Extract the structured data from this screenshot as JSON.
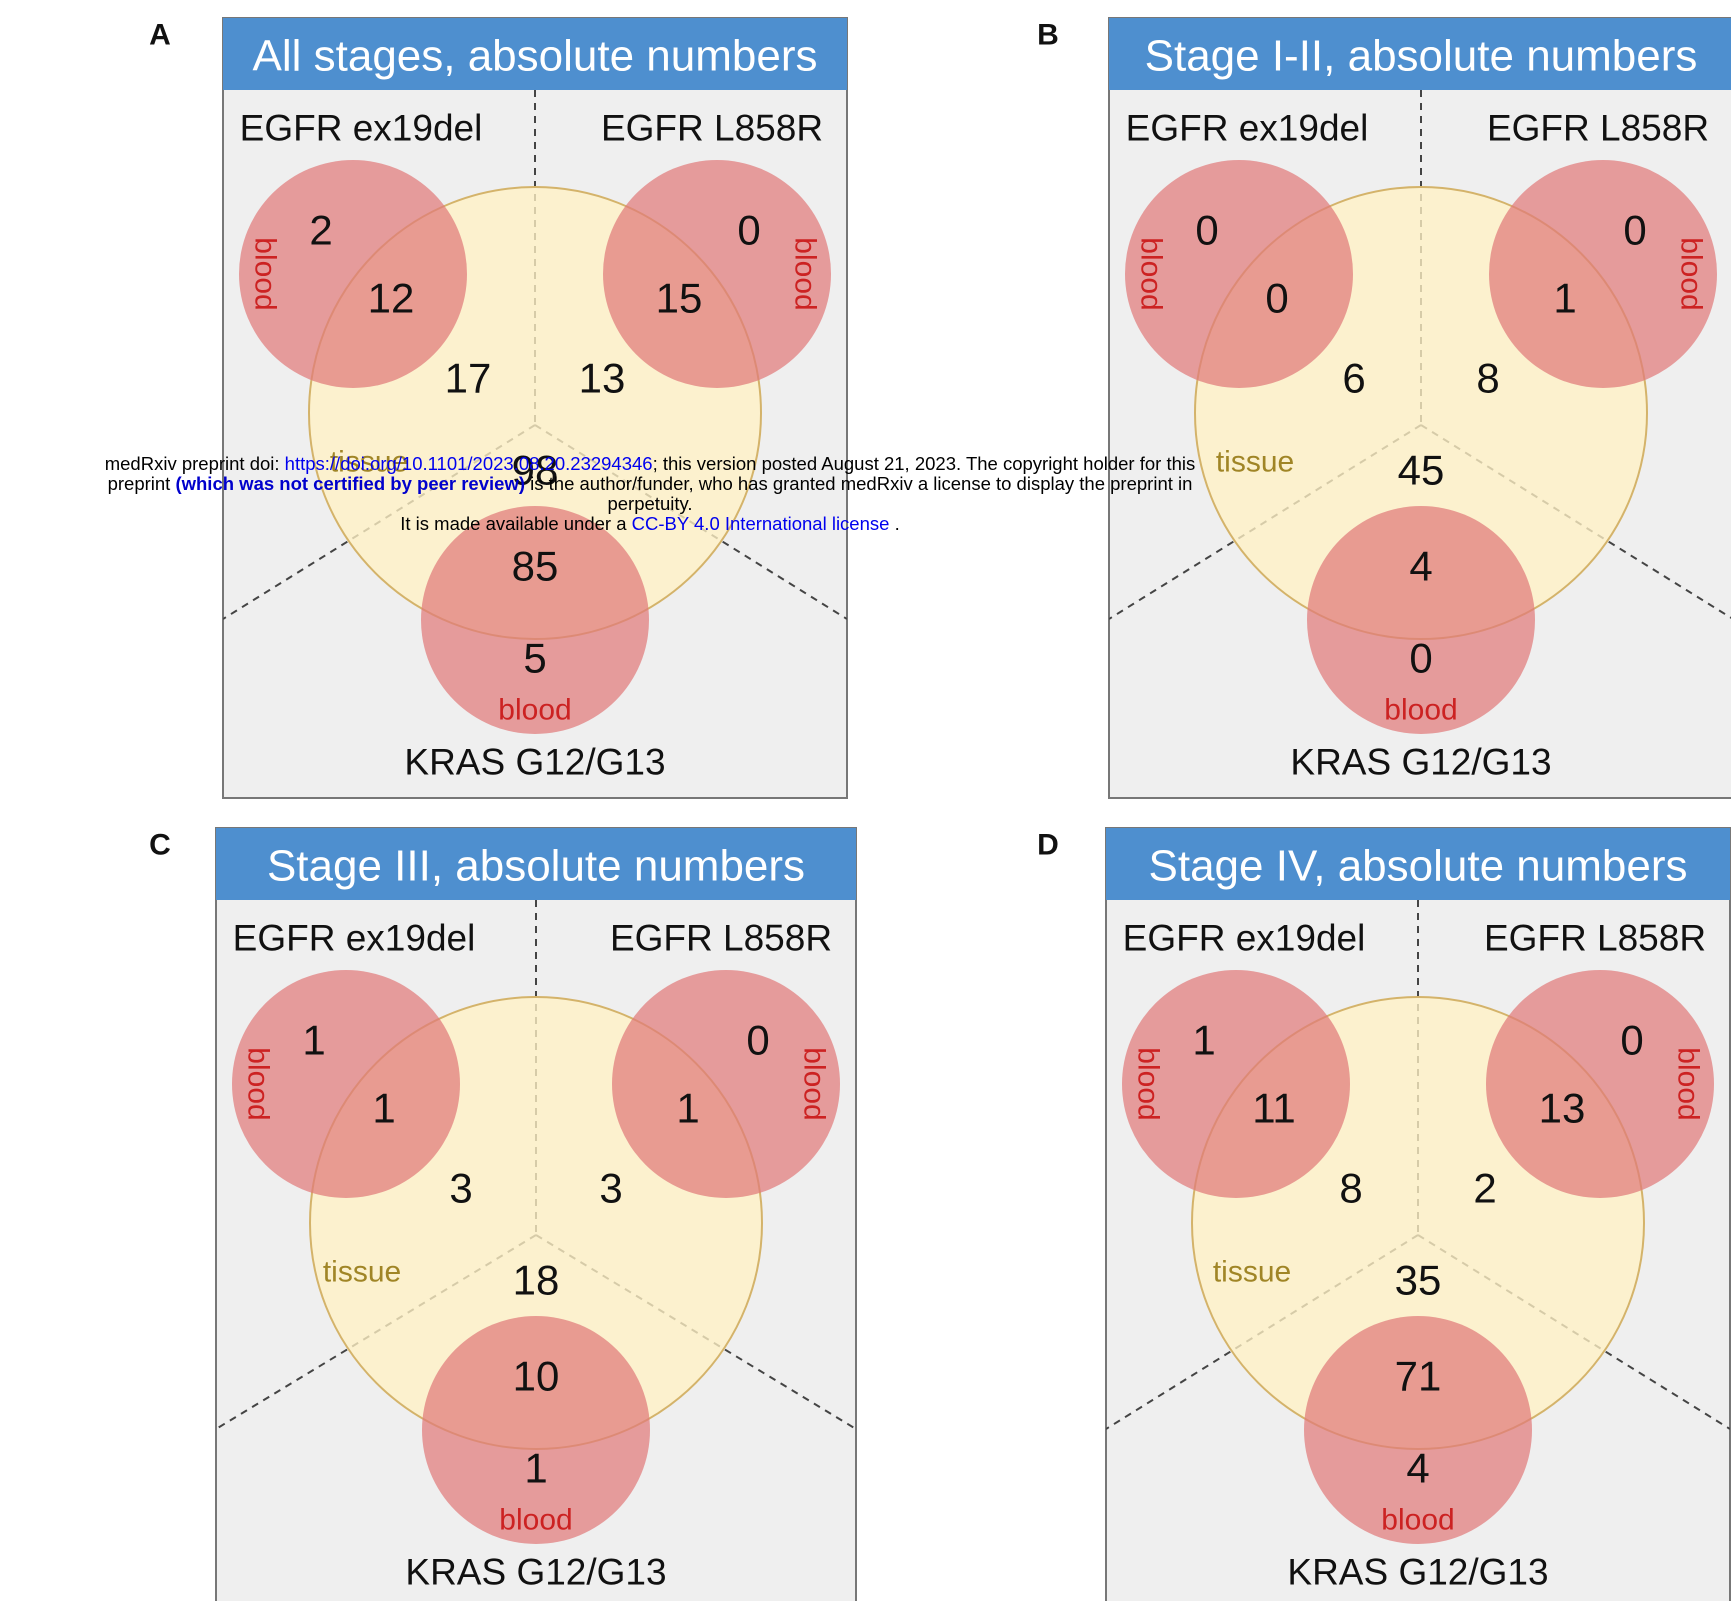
{
  "colors": {
    "header_fill": "#4e8fcf",
    "header_text": "#ffffff",
    "panel_bg": "#efefef",
    "panel_border": "#777777",
    "tissue_fill": "#fff1c4",
    "tissue_stroke": "#d4b36a",
    "blood_fill": "#e07a7a",
    "blood_label": "#cc2222",
    "tissue_label": "#a08526",
    "number_text": "#111111"
  },
  "labels": {
    "egfr_ex19del": "EGFR ex19del",
    "egfr_l858r": "EGFR L858R",
    "kras": "KRAS G12/G13",
    "tissue": "tissue",
    "blood": "blood"
  },
  "panels": [
    {
      "letter": "A",
      "title": "All stages, absolute numbers",
      "values": {
        "ex19del_blood_only": "2",
        "ex19del_both": "12",
        "ex19del_tissue_only": "17",
        "l858r_blood_only": "0",
        "l858r_both": "15",
        "l858r_tissue_only": "13",
        "kras_tissue_only": "98",
        "kras_both": "85",
        "kras_blood_only": "5"
      }
    },
    {
      "letter": "B",
      "title": "Stage I-II, absolute numbers",
      "values": {
        "ex19del_blood_only": "0",
        "ex19del_both": "0",
        "ex19del_tissue_only": "6",
        "l858r_blood_only": "0",
        "l858r_both": "1",
        "l858r_tissue_only": "8",
        "kras_tissue_only": "45",
        "kras_both": "4",
        "kras_blood_only": "0"
      }
    },
    {
      "letter": "C",
      "title": "Stage III, absolute numbers",
      "values": {
        "ex19del_blood_only": "1",
        "ex19del_both": "1",
        "ex19del_tissue_only": "3",
        "l858r_blood_only": "0",
        "l858r_both": "1",
        "l858r_tissue_only": "3",
        "kras_tissue_only": "18",
        "kras_both": "10",
        "kras_blood_only": "1"
      }
    },
    {
      "letter": "D",
      "title": "Stage IV, absolute numbers",
      "values": {
        "ex19del_blood_only": "1",
        "ex19del_both": "11",
        "ex19del_tissue_only": "8",
        "l858r_blood_only": "0",
        "l858r_both": "13",
        "l858r_tissue_only": "2",
        "kras_tissue_only": "35",
        "kras_both": "71",
        "kras_blood_only": "4"
      }
    }
  ],
  "banner": {
    "line1_prefix": "medRxiv preprint doi: ",
    "doi_link": "https://doi.org/10.1101/2023.08.20.23294346",
    "line1_suffix": "; this version posted August 21, 2023. The copyright holder for this",
    "line2_prefix": "preprint ",
    "not_certified": "(which was not certified by peer review)",
    "line2_suffix": " is the author/funder, who has granted medRxiv a license to display the preprint in",
    "line3": "perpetuity.",
    "line4_prefix": "It is made available under a ",
    "license_link": "CC-BY 4.0 International license",
    "line4_suffix": " ."
  }
}
